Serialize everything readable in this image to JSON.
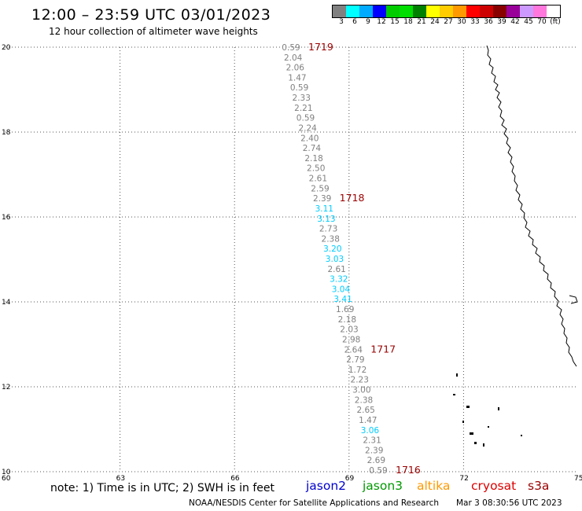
{
  "header": {
    "title": "12:00 – 23:59 UTC 03/01/2023",
    "subtitle": "12 hour collection of altimeter wave heights"
  },
  "colorbar": {
    "colors": [
      "#808080",
      "#00ffff",
      "#00aaff",
      "#0000ff",
      "#00cc00",
      "#00dd00",
      "#008000",
      "#ffff00",
      "#ffcc00",
      "#ff9900",
      "#ff0000",
      "#cc0000",
      "#880000",
      "#990099",
      "#cc99ff",
      "#ff77dd",
      "#ffffff"
    ],
    "labels": [
      "3",
      "6",
      "9",
      "12",
      "15",
      "18",
      "21",
      "24",
      "27",
      "30",
      "33",
      "36",
      "39",
      "42",
      "45",
      "70",
      "(ft)"
    ]
  },
  "axes": {
    "x_ticks": [
      "60",
      "63",
      "66",
      "69",
      "72",
      "75"
    ],
    "y_ticks": [
      "10",
      "12",
      "14",
      "16",
      "18",
      "20"
    ]
  },
  "track_points": [
    {
      "v": "0.59",
      "c": "#808080"
    },
    {
      "v": "2.04",
      "c": "#808080"
    },
    {
      "v": "2.06",
      "c": "#808080"
    },
    {
      "v": "1.47",
      "c": "#808080"
    },
    {
      "v": "0.59",
      "c": "#808080"
    },
    {
      "v": "2.33",
      "c": "#808080"
    },
    {
      "v": "2.21",
      "c": "#808080"
    },
    {
      "v": "0.59",
      "c": "#808080"
    },
    {
      "v": "2.24",
      "c": "#808080"
    },
    {
      "v": "2.40",
      "c": "#808080"
    },
    {
      "v": "2.74",
      "c": "#808080"
    },
    {
      "v": "2.18",
      "c": "#808080"
    },
    {
      "v": "2.50",
      "c": "#808080"
    },
    {
      "v": "2.61",
      "c": "#808080"
    },
    {
      "v": "2.59",
      "c": "#808080"
    },
    {
      "v": "2.39",
      "c": "#808080"
    },
    {
      "v": "3.11",
      "c": "#00ccff"
    },
    {
      "v": "3.13",
      "c": "#00ccff"
    },
    {
      "v": "2.73",
      "c": "#808080"
    },
    {
      "v": "2.38",
      "c": "#808080"
    },
    {
      "v": "3.20",
      "c": "#00ccff"
    },
    {
      "v": "3.03",
      "c": "#00ccff"
    },
    {
      "v": "2.61",
      "c": "#808080"
    },
    {
      "v": "3.32",
      "c": "#00ccff"
    },
    {
      "v": "3.04",
      "c": "#00ccff"
    },
    {
      "v": "3.41",
      "c": "#00ccff"
    },
    {
      "v": "1.69",
      "c": "#808080"
    },
    {
      "v": "2.18",
      "c": "#808080"
    },
    {
      "v": "2.03",
      "c": "#808080"
    },
    {
      "v": "2.98",
      "c": "#808080"
    },
    {
      "v": "2.64",
      "c": "#808080"
    },
    {
      "v": "2.79",
      "c": "#808080"
    },
    {
      "v": "1.72",
      "c": "#808080"
    },
    {
      "v": "2.23",
      "c": "#808080"
    },
    {
      "v": "3.00",
      "c": "#808080"
    },
    {
      "v": "2.38",
      "c": "#808080"
    },
    {
      "v": "2.65",
      "c": "#808080"
    },
    {
      "v": "1.47",
      "c": "#808080"
    },
    {
      "v": "3.06",
      "c": "#00ccff"
    },
    {
      "v": "2.31",
      "c": "#808080"
    },
    {
      "v": "2.39",
      "c": "#808080"
    },
    {
      "v": "2.69",
      "c": "#808080"
    },
    {
      "v": "0.59",
      "c": "#808080"
    }
  ],
  "time_labels": [
    {
      "text": "1719",
      "index": 0
    },
    {
      "text": "1718",
      "index": 15
    },
    {
      "text": "1717",
      "index": 30
    },
    {
      "text": "1716",
      "index": 42
    }
  ],
  "footer": {
    "note": "note:  1) Time is in UTC;  2) SWH is in feet",
    "satellites": [
      {
        "name": "jason2",
        "color": "#0000cc"
      },
      {
        "name": "jason3",
        "color": "#009900"
      },
      {
        "name": "altika",
        "color": "#ff9900"
      },
      {
        "name": "cryosat",
        "color": "#dd0000"
      },
      {
        "name": "s3a",
        "color": "#990000"
      }
    ],
    "credit": "NOAA/NESDIS Center for Satellite Applications and Research",
    "timestamp": "Mar  3 08:30:56 UTC 2023"
  }
}
